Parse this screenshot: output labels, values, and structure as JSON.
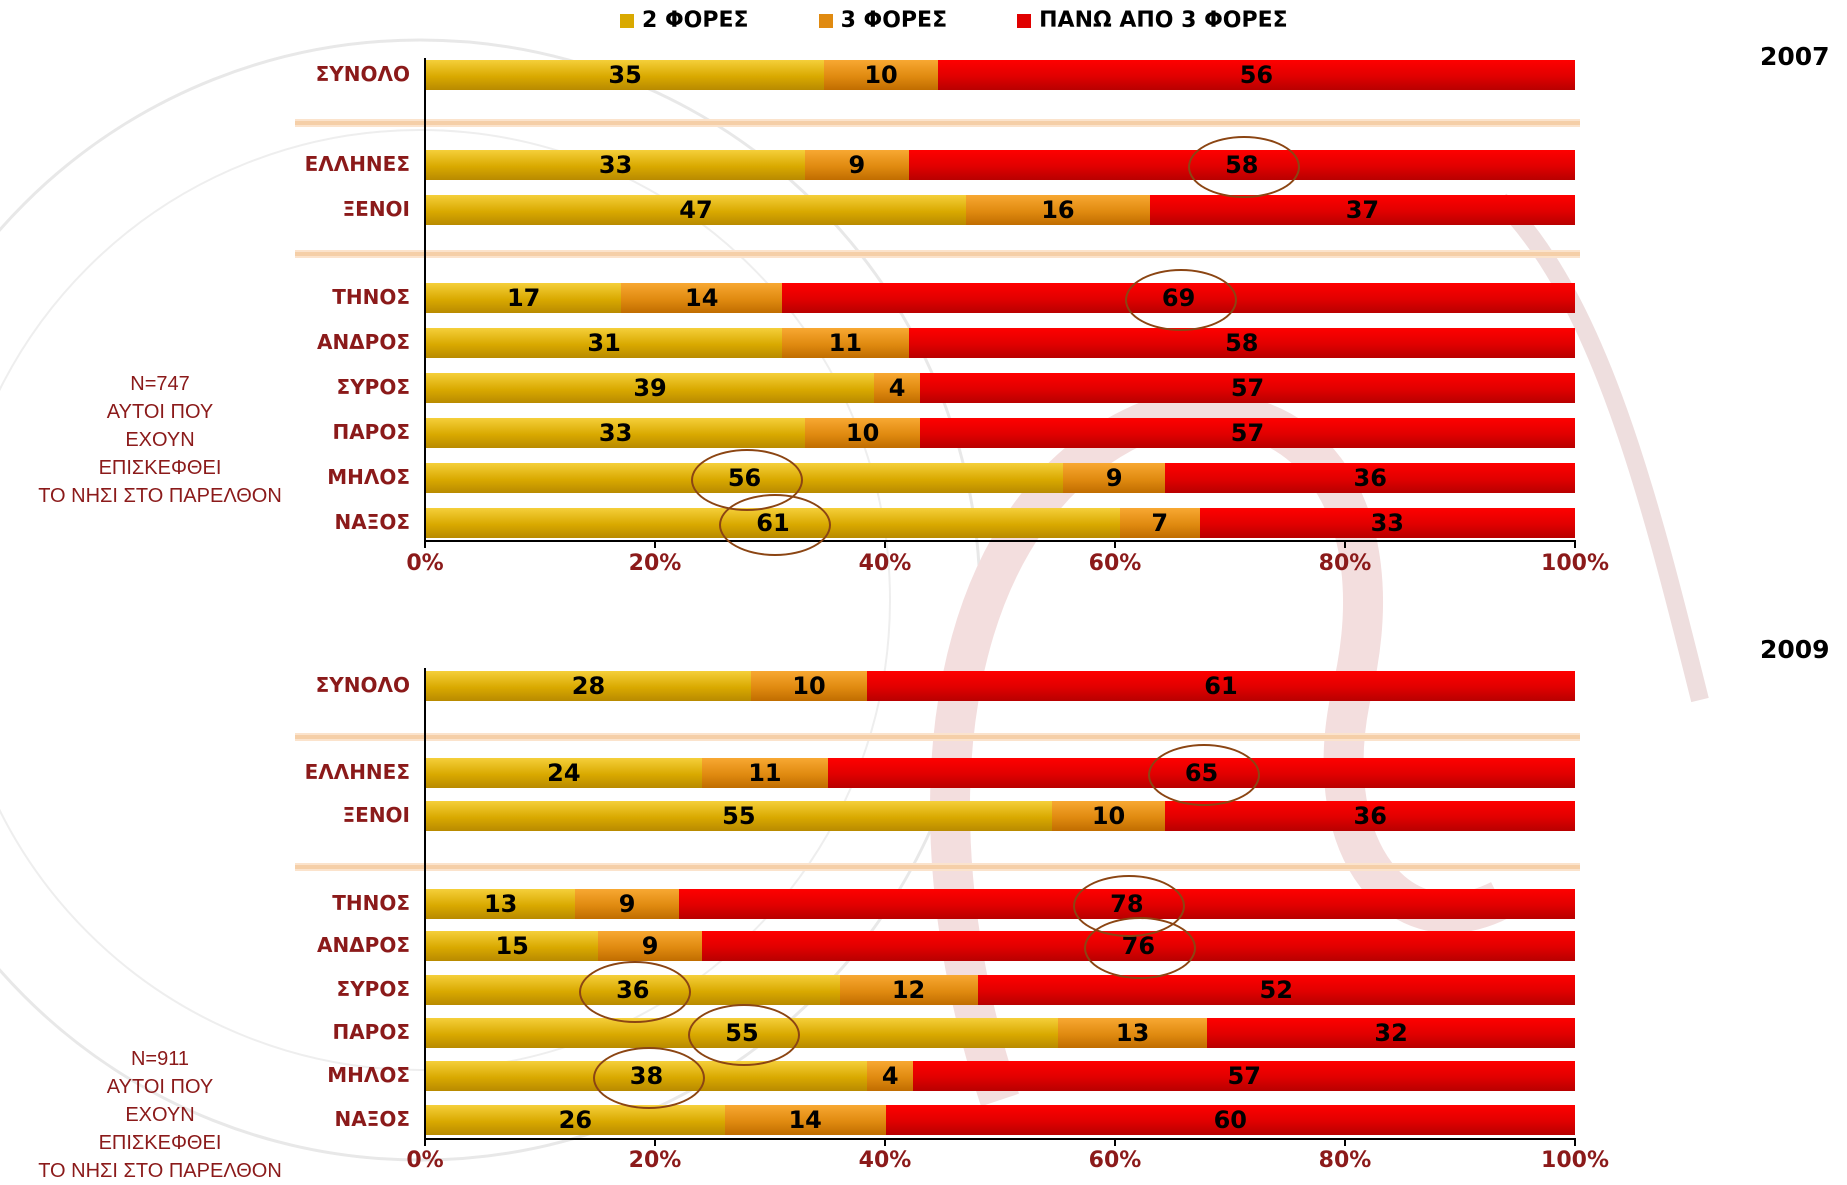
{
  "legend": {
    "items": [
      {
        "label": "2 ΦΟΡΕΣ",
        "color": "#d9a900"
      },
      {
        "label": "3 ΦΟΡΕΣ",
        "color": "#e08a10"
      },
      {
        "label": "ΠΑΝΩ ΑΠΟ 3 ΦΟΡΕΣ",
        "color": "#e00000"
      }
    ]
  },
  "chart_data": [
    {
      "type": "bar",
      "orientation": "horizontal",
      "stacked": true,
      "title": "2007",
      "note": [
        "N=747",
        "ΑΥΤΟΙ ΠΟΥ",
        "ΕΧΟΥΝ",
        "ΕΠΙΣΚΕΦΘΕΙ",
        "ΤΟ ΝΗΣΙ ΣΤΟ ΠΑΡΕΛΘΟΝ"
      ],
      "categories": [
        "ΣΥΝΟΛΟ",
        "ΕΛΛΗΝΕΣ",
        "ΞΕΝΟΙ",
        "ΤΗΝΟΣ",
        "ΑΝΔΡΟΣ",
        "ΣΥΡΟΣ",
        "ΠΑΡΟΣ",
        "ΜΗΛΟΣ",
        "ΝΑΞΟΣ"
      ],
      "series": [
        {
          "name": "2 ΦΟΡΕΣ",
          "values": [
            35,
            33,
            47,
            17,
            31,
            39,
            33,
            56,
            61
          ]
        },
        {
          "name": "3 ΦΟΡΕΣ",
          "values": [
            10,
            9,
            16,
            14,
            11,
            4,
            10,
            9,
            7
          ]
        },
        {
          "name": "ΠΑΝΩ ΑΠΟ 3 ΦΟΡΕΣ",
          "values": [
            56,
            58,
            37,
            69,
            58,
            57,
            57,
            36,
            33
          ]
        }
      ],
      "xticks": [
        "0%",
        "20%",
        "40%",
        "60%",
        "80%",
        "100%"
      ],
      "xlim": [
        0,
        100
      ],
      "circled": [
        [
          1,
          2
        ],
        [
          3,
          2
        ],
        [
          7,
          0
        ],
        [
          8,
          0
        ]
      ]
    },
    {
      "type": "bar",
      "orientation": "horizontal",
      "stacked": true,
      "title": "2009",
      "note": [
        "N=911",
        "ΑΥΤΟΙ ΠΟΥ",
        "ΕΧΟΥΝ",
        "ΕΠΙΣΚΕΦΘΕΙ",
        "ΤΟ ΝΗΣΙ ΣΤΟ ΠΑΡΕΛΘΟΝ"
      ],
      "categories": [
        "ΣΥΝΟΛΟ",
        "ΕΛΛΗΝΕΣ",
        "ΞΕΝΟΙ",
        "ΤΗΝΟΣ",
        "ΑΝΔΡΟΣ",
        "ΣΥΡΟΣ",
        "ΠΑΡΟΣ",
        "ΜΗΛΟΣ",
        "ΝΑΞΟΣ"
      ],
      "series": [
        {
          "name": "2 ΦΟΡΕΣ",
          "values": [
            28,
            24,
            55,
            13,
            15,
            36,
            55,
            38,
            26
          ]
        },
        {
          "name": "3 ΦΟΡΕΣ",
          "values": [
            10,
            11,
            10,
            9,
            9,
            12,
            13,
            4,
            14
          ]
        },
        {
          "name": "ΠΑΝΩ ΑΠΟ 3 ΦΟΡΕΣ",
          "values": [
            61,
            65,
            36,
            78,
            76,
            52,
            32,
            57,
            60
          ]
        }
      ],
      "xticks": [
        "0%",
        "20%",
        "40%",
        "60%",
        "80%",
        "100%"
      ],
      "xlim": [
        0,
        100
      ],
      "circled": [
        [
          1,
          2
        ],
        [
          3,
          2
        ],
        [
          4,
          2
        ],
        [
          5,
          0
        ],
        [
          6,
          0
        ],
        [
          7,
          0
        ]
      ]
    }
  ]
}
